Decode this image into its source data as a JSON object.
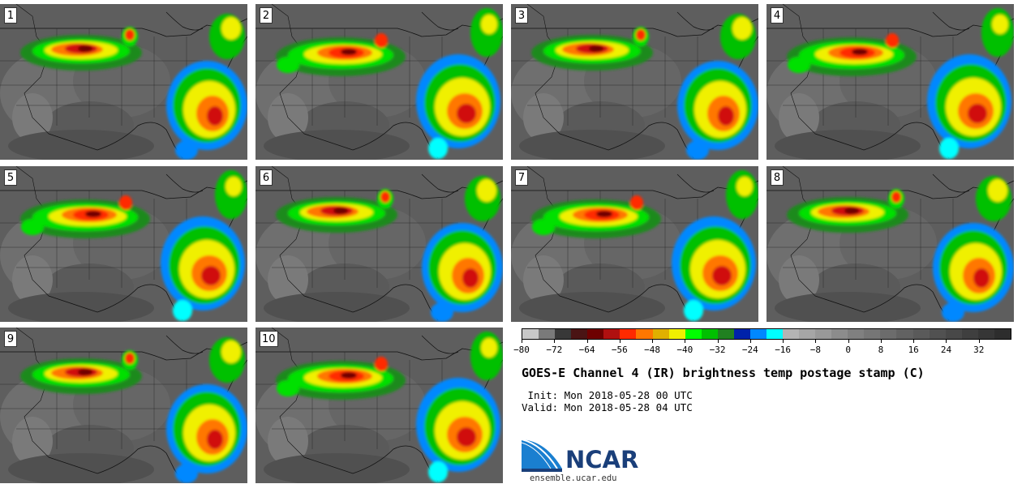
{
  "panels": [
    {
      "label": "1"
    },
    {
      "label": "2"
    },
    {
      "label": "3"
    },
    {
      "label": "4"
    },
    {
      "label": "5"
    },
    {
      "label": "6"
    },
    {
      "label": "7"
    },
    {
      "label": "8"
    },
    {
      "label": "9"
    },
    {
      "label": "10"
    }
  ],
  "colorbar": {
    "colors": [
      "#c8c8c8",
      "#7a7a7a",
      "#383838",
      "#4a1414",
      "#6e0000",
      "#b01010",
      "#ff2a00",
      "#ff7700",
      "#e0b000",
      "#f0f000",
      "#00ff00",
      "#00c000",
      "#208020",
      "#0022aa",
      "#0088ff",
      "#00ffff",
      "#b4b4b4",
      "#a6a6a6",
      "#999999",
      "#8c8c8c",
      "#808080",
      "#767676",
      "#6c6c6c",
      "#626262",
      "#5a5a5a",
      "#515151",
      "#484848",
      "#3f3f3f",
      "#363636",
      "#2d2d2d"
    ],
    "min": -80,
    "max": 40,
    "ticks": [
      "-80",
      "-72",
      "-64",
      "-56",
      "-48",
      "-40",
      "-32",
      "-24",
      "-16",
      "-8",
      "0",
      "8",
      "16",
      "24",
      "32"
    ]
  },
  "title": "GOES-E Channel 4 (IR) brightness temp postage stamp (C)",
  "init": " Init: Mon 2018-05-28 00 UTC",
  "valid": "Valid: Mon 2018-05-28 04 UTC",
  "logo": {
    "name": "NCAR",
    "site": "ensemble.ucar.edu"
  }
}
